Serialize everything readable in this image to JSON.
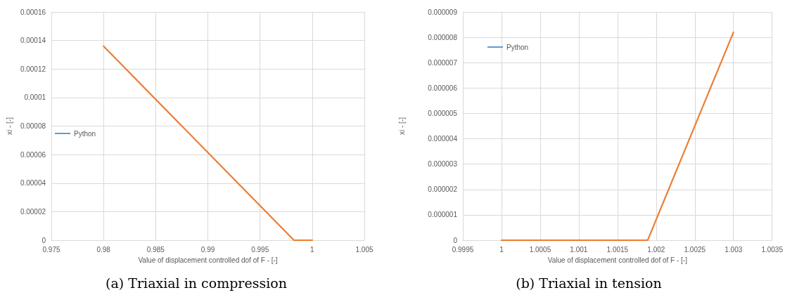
{
  "chart_data": [
    {
      "type": "line",
      "title": "(a)  Triaxial in compression",
      "xlabel": "Value of displacement controlled dof of F - [-]",
      "ylabel": "xi - [-]",
      "series": [
        {
          "name": "Python",
          "color": "#5b9bd5"
        },
        {
          "color": "#ed7d31",
          "x": [
            0.98,
            0.99825,
            1
          ],
          "values": [
            0.000136,
            0,
            0
          ]
        }
      ],
      "xlim": [
        0.975,
        1.005
      ],
      "xticks": [
        0.975,
        0.98,
        0.985,
        0.99,
        0.995,
        1,
        1.005
      ],
      "ylim": [
        0,
        0.00016
      ],
      "yticks": [
        0,
        {
          "value": 2e-05,
          "label": "0.00002"
        },
        {
          "value": 4e-05,
          "label": "0.00004"
        },
        {
          "value": 6e-05,
          "label": "0.00006"
        },
        {
          "value": 8e-05,
          "label": "0.00008"
        },
        0.0001,
        0.00012,
        0.00014,
        0.00016
      ],
      "grid": true,
      "legend": "left",
      "marker": "none",
      "line_style": "solid"
    },
    {
      "type": "line",
      "title": "(b)  Triaxial in tension",
      "xlabel": "Value of displacement controlled dof of F - [-]",
      "ylabel": "xi - [-]",
      "series": [
        {
          "name": "Python",
          "color": "#5b9bd5"
        },
        {
          "color": "#ed7d31",
          "x": [
            1,
            1.00189,
            1.003
          ],
          "values": [
            0,
            0,
            8.2e-06
          ]
        }
      ],
      "xlim": [
        0.9995,
        1.0035
      ],
      "xticks": [
        0.9995,
        1,
        1.0005,
        1.001,
        1.0015,
        1.002,
        1.0025,
        1.003,
        1.0035
      ],
      "ylim": [
        0,
        9e-06
      ],
      "yticks": [
        0,
        {
          "value": 1e-06,
          "label": "0.000001"
        },
        {
          "value": 2e-06,
          "label": "0.000002"
        },
        {
          "value": 3e-06,
          "label": "0.000003"
        },
        {
          "value": 4e-06,
          "label": "0.000004"
        },
        {
          "value": 5e-06,
          "label": "0.000005"
        },
        {
          "value": 6e-06,
          "label": "0.000006"
        },
        {
          "value": 7e-06,
          "label": "0.000007"
        },
        {
          "value": 8e-06,
          "label": "0.000008"
        },
        {
          "value": 9e-06,
          "label": "0.000009"
        }
      ],
      "grid": true,
      "legend": "top left",
      "marker": "none",
      "line_style": "solid"
    }
  ]
}
